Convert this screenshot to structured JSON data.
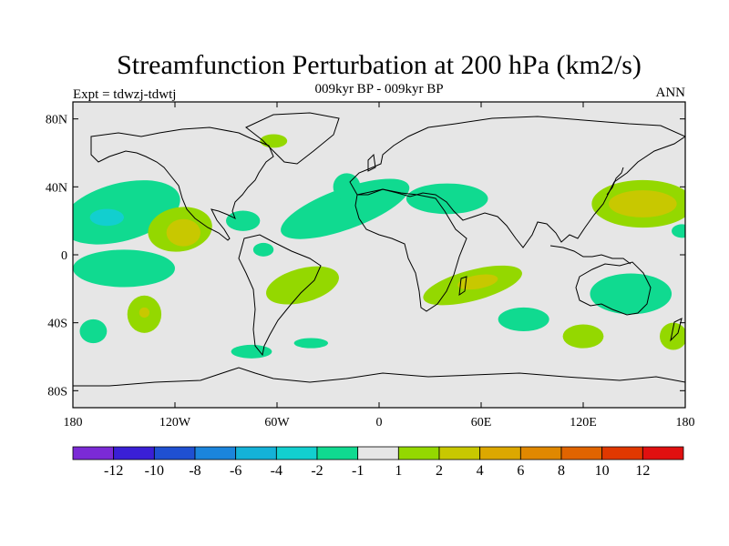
{
  "chart_data": {
    "type": "heatmap",
    "title": "Streamfunction Perturbation at 200 hPa (km2/s)",
    "left_label": "Expt = tdwzj-tdwtj",
    "center_label": "009kyr BP - 009kyr BP",
    "right_label": "ANN",
    "xlim": [
      -180,
      180
    ],
    "ylim": [
      -90,
      90
    ],
    "xticks": [
      {
        "value": -180,
        "label": "180"
      },
      {
        "value": -120,
        "label": "120W"
      },
      {
        "value": -60,
        "label": "60W"
      },
      {
        "value": 0,
        "label": "0"
      },
      {
        "value": 60,
        "label": "60E"
      },
      {
        "value": 120,
        "label": "120E"
      },
      {
        "value": 180,
        "label": "180"
      }
    ],
    "yticks": [
      {
        "value": 80,
        "label": "80N"
      },
      {
        "value": 40,
        "label": "40N"
      },
      {
        "value": 0,
        "label": "0"
      },
      {
        "value": -40,
        "label": "40S"
      },
      {
        "value": -80,
        "label": "80S"
      }
    ],
    "colorbar": {
      "colors": [
        "#7b2ad6",
        "#3a1fd6",
        "#1f50d2",
        "#1b85dc",
        "#14b2d8",
        "#12cfcf",
        "#10da90",
        "#e6e6e6",
        "#94d800",
        "#c8c800",
        "#dca800",
        "#e08800",
        "#e06400",
        "#e03800",
        "#e01010"
      ],
      "labels": [
        "-12",
        "-10",
        "-8",
        "-6",
        "-4",
        "-2",
        "-1",
        "1",
        "2",
        "4",
        "6",
        "8",
        "10",
        "12"
      ]
    },
    "regions": [
      {
        "lon": -152,
        "lat": 25,
        "rx": 36,
        "ry": 17,
        "rot": -15,
        "level": -1
      },
      {
        "lon": -160,
        "lat": 22,
        "rx": 10,
        "ry": 5,
        "rot": 0,
        "level": -2
      },
      {
        "lon": -117,
        "lat": 15,
        "rx": 19,
        "ry": 13,
        "rot": -10,
        "level": 1
      },
      {
        "lon": -115,
        "lat": 13,
        "rx": 10,
        "ry": 8,
        "rot": 0,
        "level": 2
      },
      {
        "lon": -150,
        "lat": -8,
        "rx": 30,
        "ry": 11,
        "rot": 0,
        "level": -1
      },
      {
        "lon": -80,
        "lat": 20,
        "rx": 10,
        "ry": 6,
        "rot": 0,
        "level": -1
      },
      {
        "lon": -68,
        "lat": 3,
        "rx": 6,
        "ry": 4,
        "rot": 0,
        "level": -1
      },
      {
        "lon": -20,
        "lat": 27,
        "rx": 40,
        "ry": 12,
        "rot": -20,
        "level": -1
      },
      {
        "lon": -19,
        "lat": 40,
        "rx": 8,
        "ry": 8,
        "rot": 0,
        "level": -1
      },
      {
        "lon": 40,
        "lat": 33,
        "rx": 24,
        "ry": 9,
        "rot": 0,
        "level": -1
      },
      {
        "lon": -62,
        "lat": 67,
        "rx": 8,
        "ry": 4,
        "rot": 0,
        "level": 1
      },
      {
        "lon": -45,
        "lat": -18,
        "rx": 22,
        "ry": 10,
        "rot": -15,
        "level": 1
      },
      {
        "lon": -138,
        "lat": -35,
        "rx": 10,
        "ry": 11,
        "rot": 0,
        "level": 1
      },
      {
        "lon": -138,
        "lat": -34,
        "rx": 3,
        "ry": 3,
        "rot": 0,
        "level": 2
      },
      {
        "lon": -168,
        "lat": -45,
        "rx": 8,
        "ry": 7,
        "rot": 0,
        "level": -1
      },
      {
        "lon": -75,
        "lat": -57,
        "rx": 12,
        "ry": 4,
        "rot": 0,
        "level": -1
      },
      {
        "lon": -40,
        "lat": -52,
        "rx": 10,
        "ry": 3,
        "rot": 0,
        "level": -1
      },
      {
        "lon": 55,
        "lat": -18,
        "rx": 30,
        "ry": 9,
        "rot": -15,
        "level": 1
      },
      {
        "lon": 58,
        "lat": -16,
        "rx": 12,
        "ry": 4,
        "rot": -10,
        "level": 2
      },
      {
        "lon": 85,
        "lat": -38,
        "rx": 15,
        "ry": 7,
        "rot": 0,
        "level": -1
      },
      {
        "lon": 148,
        "lat": -23,
        "rx": 24,
        "ry": 12,
        "rot": 0,
        "level": -1
      },
      {
        "lon": 120,
        "lat": -48,
        "rx": 12,
        "ry": 7,
        "rot": 0,
        "level": 1
      },
      {
        "lon": 173,
        "lat": -48,
        "rx": 8,
        "ry": 8,
        "rot": 0,
        "level": 1
      },
      {
        "lon": 155,
        "lat": 30,
        "rx": 30,
        "ry": 14,
        "rot": 0,
        "level": 1
      },
      {
        "lon": 155,
        "lat": 30,
        "rx": 20,
        "ry": 8,
        "rot": 0,
        "level": 2
      },
      {
        "lon": 178,
        "lat": 14,
        "rx": 6,
        "ry": 4,
        "rot": 0,
        "level": -1
      }
    ]
  }
}
